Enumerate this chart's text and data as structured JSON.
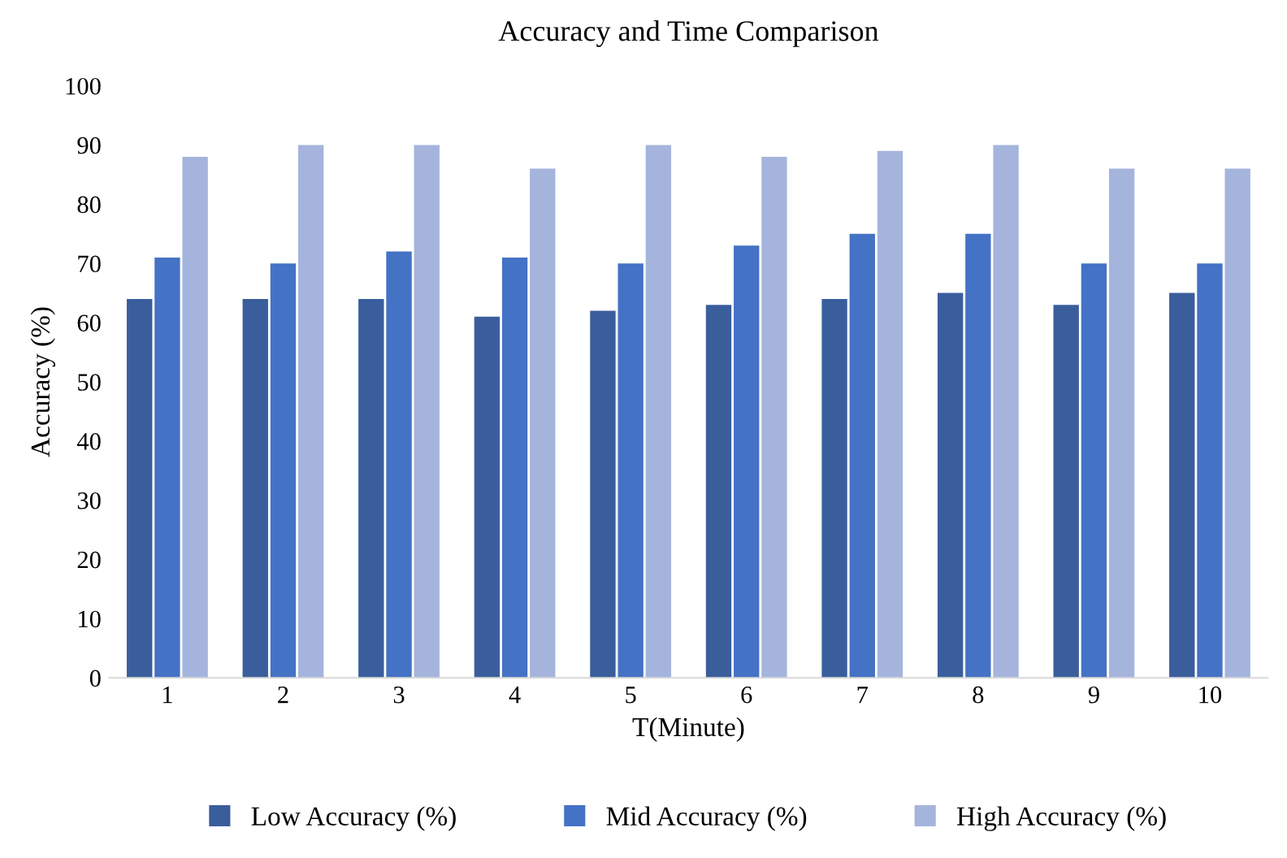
{
  "chart_data": {
    "type": "bar",
    "title": "Accuracy and Time Comparison",
    "xlabel": "T(Minute)",
    "ylabel": "Accuracy (%)",
    "categories": [
      "1",
      "2",
      "3",
      "4",
      "5",
      "6",
      "7",
      "8",
      "9",
      "10"
    ],
    "series": [
      {
        "name": "Low Accuracy (%)",
        "color": "#3a5d9c",
        "values": [
          64,
          64,
          64,
          61,
          62,
          63,
          64,
          65,
          63,
          65
        ]
      },
      {
        "name": "Mid Accuracy (%)",
        "color": "#4472c4",
        "values": [
          71,
          70,
          72,
          71,
          70,
          73,
          75,
          75,
          70,
          70
        ]
      },
      {
        "name": "High Accuracy (%)",
        "color": "#a5b4dc",
        "values": [
          88,
          90,
          90,
          86,
          90,
          88,
          89,
          90,
          86,
          86
        ]
      }
    ],
    "ylim": [
      0,
      100
    ],
    "yticks": [
      0,
      10,
      20,
      30,
      40,
      50,
      60,
      70,
      80,
      90,
      100
    ],
    "grid": false,
    "legend": "bottom"
  }
}
